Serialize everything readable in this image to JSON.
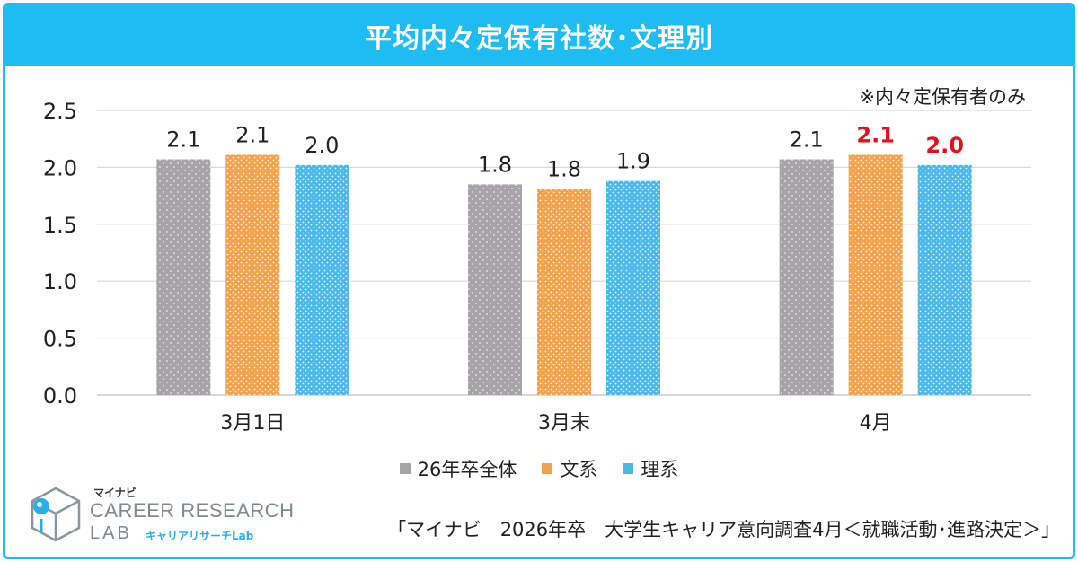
{
  "chart_data": {
    "type": "bar",
    "title": "平均内々定保有社数･文理別",
    "note": "※内々定保有者のみ",
    "categories": [
      "3月1日",
      "3月末",
      "4月"
    ],
    "ylim": [
      0,
      2.5
    ],
    "yticks": [
      "0.0",
      "0.5",
      "1.0",
      "1.5",
      "2.0",
      "2.5"
    ],
    "ytick_values": [
      0,
      0.5,
      1.0,
      1.5,
      2.0,
      2.5
    ],
    "grid": true,
    "legend_position": "bottom",
    "series": [
      {
        "name": "26年卒全体",
        "color": "#a6a4a6",
        "values": [
          2.07,
          1.85,
          2.07
        ],
        "labels": [
          "2.1",
          "1.8",
          "2.1"
        ],
        "label_colors": [
          "#222222",
          "#222222",
          "#222222"
        ]
      },
      {
        "name": "文系",
        "color": "#f0a24c",
        "values": [
          2.11,
          1.81,
          2.11
        ],
        "labels": [
          "2.1",
          "1.8",
          "2.1"
        ],
        "label_colors": [
          "#222222",
          "#222222",
          "#e0111e"
        ]
      },
      {
        "name": "理系",
        "color": "#4cb8e8",
        "values": [
          2.02,
          1.88,
          2.02
        ],
        "labels": [
          "2.0",
          "1.9",
          "2.0"
        ],
        "label_colors": [
          "#222222",
          "#222222",
          "#e0111e"
        ]
      }
    ]
  },
  "logo": {
    "brand": "マイナビ",
    "line1": "CAREER RESEARCH",
    "line2": "LAB",
    "sub": "キャリアリサーチLab",
    "icon": "cube-logo-icon"
  },
  "source": "「マイナビ　2026年卒　大学生キャリア意向調査4月＜就職活動･進路決定＞」",
  "colors": {
    "accent": "#1ebcf0",
    "highlight": "#e0111e",
    "grid": "#d9d9d9"
  }
}
